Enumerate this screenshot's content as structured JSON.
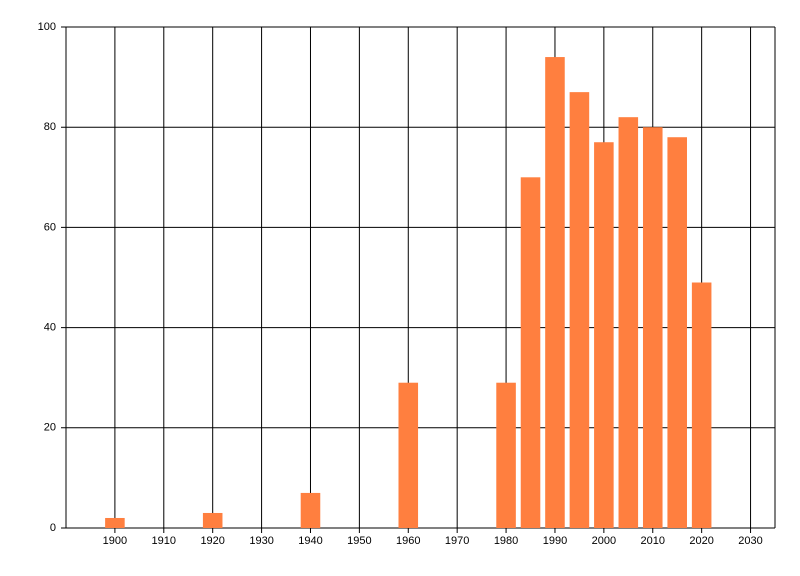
{
  "chart_data": {
    "type": "bar",
    "x": [
      1900,
      1920,
      1940,
      1960,
      1980,
      1985,
      1990,
      1995,
      2000,
      2005,
      2010,
      2015,
      2020
    ],
    "values": [
      2,
      3,
      7,
      29,
      29,
      70,
      94,
      87,
      77,
      82,
      80,
      78,
      49
    ],
    "color": "#ff7f3f",
    "xlim": [
      1890,
      2035
    ],
    "xticks": [
      1900,
      1910,
      1920,
      1930,
      1940,
      1950,
      1960,
      1970,
      1980,
      1990,
      2000,
      2010,
      2020,
      2030
    ],
    "ylim": [
      0,
      100
    ],
    "yticks": [
      0,
      20,
      40,
      60,
      80,
      100
    ],
    "grid": true
  }
}
